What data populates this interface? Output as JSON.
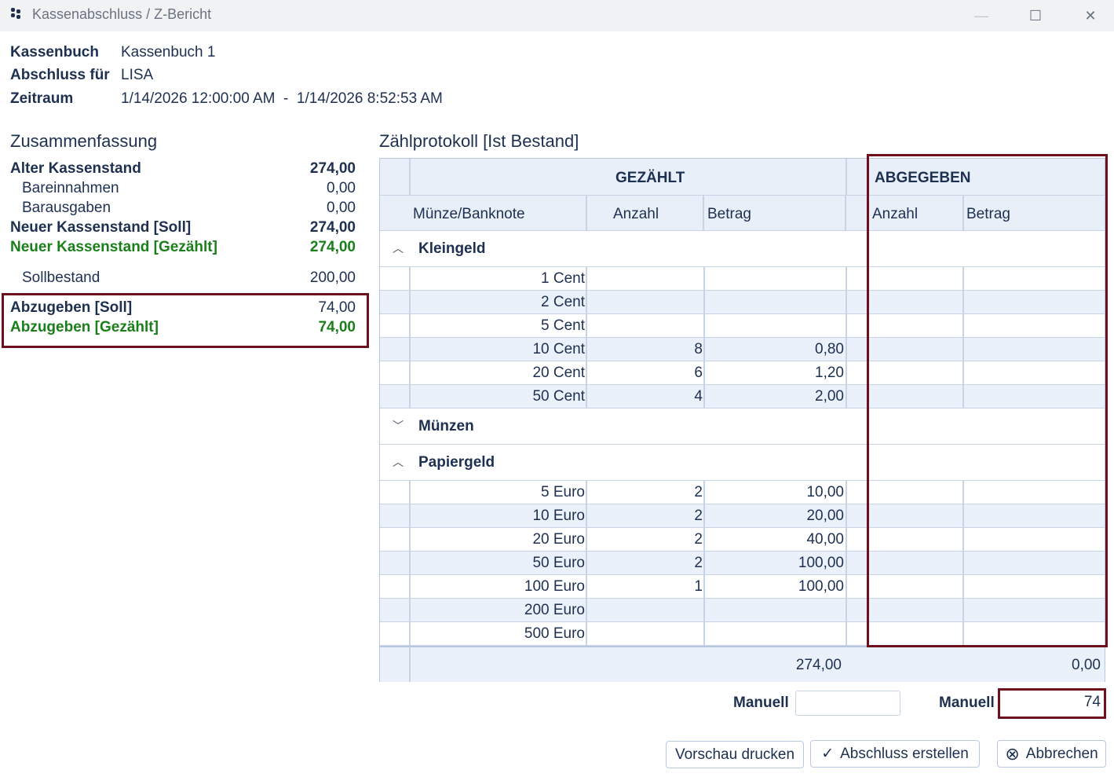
{
  "window": {
    "title": "Kassenabschluss / Z-Bericht",
    "minimize": "—",
    "maximize": "☐",
    "close": "✕"
  },
  "meta": {
    "kassenbuch_label": "Kassenbuch",
    "kassenbuch_value": "Kassenbuch 1",
    "abschluss_label": "Abschluss für",
    "abschluss_value": "LISA",
    "zeitraum_label": "Zeitraum",
    "zeitraum_value": "1/14/2026 12:00:00 AM  -  1/14/2026 8:52:53 AM"
  },
  "summary": {
    "title": "Zusammenfassung",
    "alter_label": "Alter Kassenstand",
    "alter_value": "274,00",
    "einnahmen_label": "Bareinnahmen",
    "einnahmen_value": "0,00",
    "ausgaben_label": "Barausgaben",
    "ausgaben_value": "0,00",
    "neu_soll_label": "Neuer Kassenstand [Soll]",
    "neu_soll_value": "274,00",
    "neu_gezaehlt_label": "Neuer Kassenstand [Gezählt]",
    "neu_gezaehlt_value": "274,00",
    "sollbestand_label": "Sollbestand",
    "sollbestand_value": "200,00",
    "abz_soll_label": "Abzugeben [Soll]",
    "abz_soll_value": "74,00",
    "abz_gezaehlt_label": "Abzugeben [Gezählt]",
    "abz_gezaehlt_value": "74,00"
  },
  "protocol": {
    "title": "Zählprotokoll [Ist Bestand]",
    "group_gezaehlt": "GEZÄHLT",
    "group_abgegeben": "ABGEGEBEN",
    "col_muenze": "Münze/Banknote",
    "col_anzahl": "Anzahl",
    "col_betrag": "Betrag",
    "col_anzahl2": "Anzahl",
    "col_betrag2": "Betrag",
    "groups": {
      "kleingeld": {
        "label": "Kleingeld",
        "chevron": "︿",
        "rows": [
          {
            "name": "1 Cent",
            "anzahl": "",
            "betrag": ""
          },
          {
            "name": "2 Cent",
            "anzahl": "",
            "betrag": ""
          },
          {
            "name": "5 Cent",
            "anzahl": "",
            "betrag": ""
          },
          {
            "name": "10 Cent",
            "anzahl": "8",
            "betrag": "0,80"
          },
          {
            "name": "20 Cent",
            "anzahl": "6",
            "betrag": "1,20"
          },
          {
            "name": "50 Cent",
            "anzahl": "4",
            "betrag": "2,00"
          }
        ]
      },
      "muenzen": {
        "label": "Münzen",
        "chevron": "﹀"
      },
      "papiergeld": {
        "label": "Papiergeld",
        "chevron": "︿",
        "rows": [
          {
            "name": "5 Euro",
            "anzahl": "2",
            "betrag": "10,00"
          },
          {
            "name": "10 Euro",
            "anzahl": "2",
            "betrag": "20,00"
          },
          {
            "name": "20 Euro",
            "anzahl": "2",
            "betrag": "40,00"
          },
          {
            "name": "50 Euro",
            "anzahl": "2",
            "betrag": "100,00"
          },
          {
            "name": "100 Euro",
            "anzahl": "1",
            "betrag": "100,00"
          },
          {
            "name": "200 Euro",
            "anzahl": "",
            "betrag": ""
          },
          {
            "name": "500 Euro",
            "anzahl": "",
            "betrag": ""
          }
        ]
      }
    },
    "total_gezaehlt": "274,00",
    "total_abgegeben": "0,00"
  },
  "manual": {
    "label1": "Manuell",
    "value1": "",
    "label2": "Manuell",
    "value2": "74"
  },
  "buttons": {
    "preview": "Vorschau drucken",
    "create": "Abschluss erstellen",
    "cancel": "Abbrechen"
  },
  "icons": {
    "check": "✓",
    "cancel": "⊗"
  }
}
